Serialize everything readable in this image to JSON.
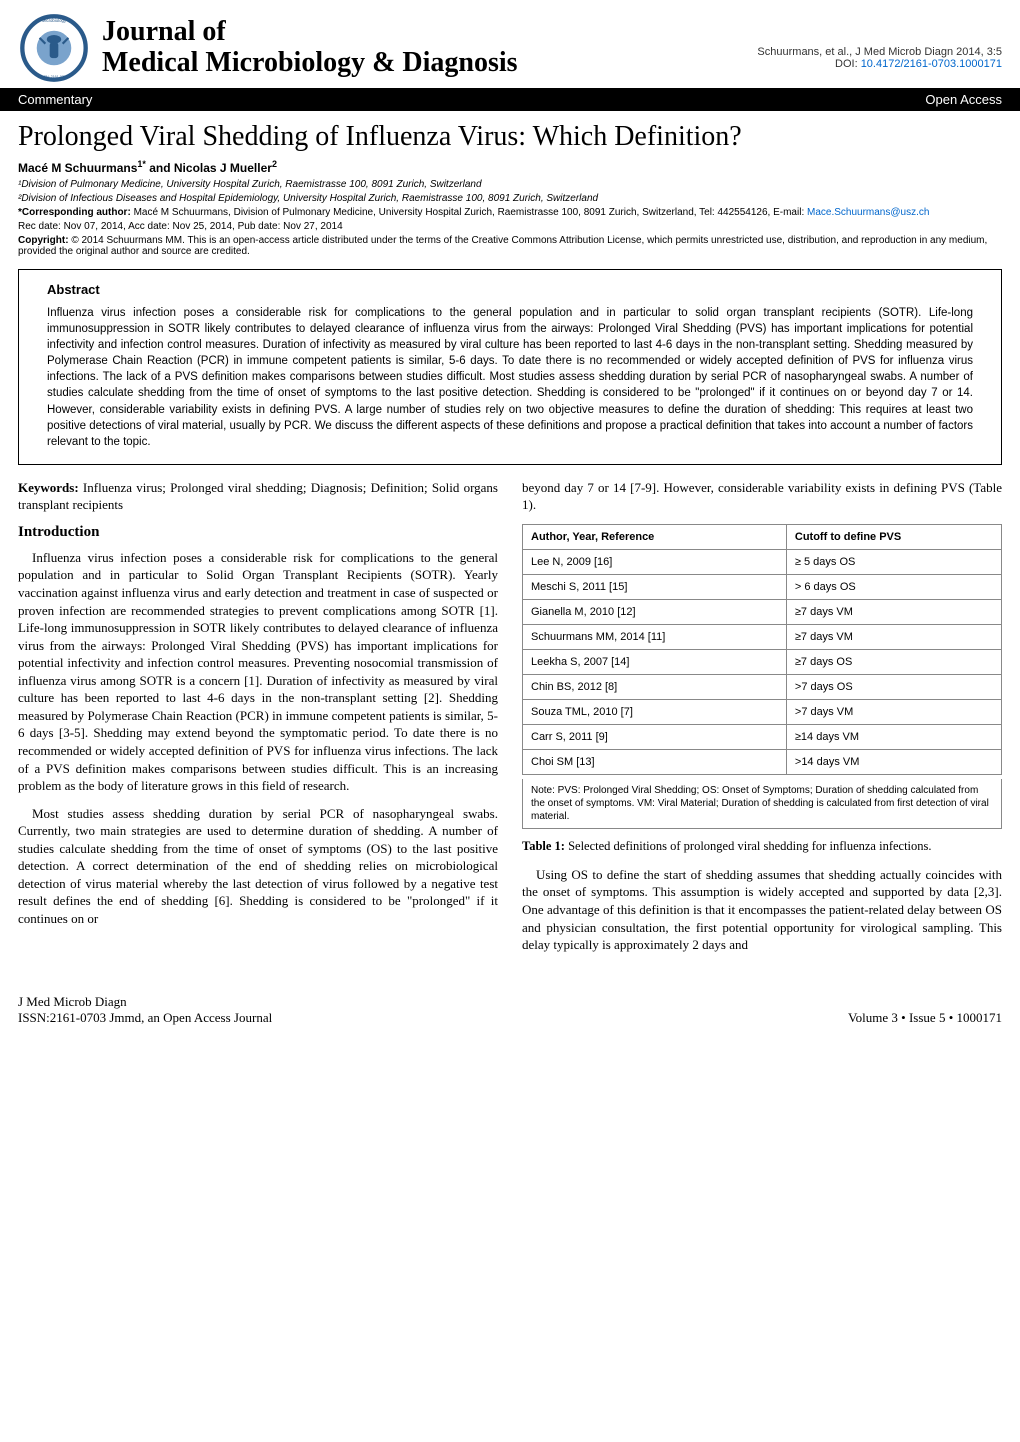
{
  "header": {
    "journal_line1": "Journal of",
    "journal_line2": "Medical Microbiology & Diagnosis",
    "citation": "Schuurmans, et al., J Med Microb Diagn 2014, 3:5",
    "doi_label": "DOI: ",
    "doi": "10.4172/2161-0703.1000171",
    "bar_left": "Commentary",
    "bar_right": "Open Access"
  },
  "title": "Prolonged Viral Shedding of Influenza Virus: Which Definition?",
  "authors_html": "Macé M Schuurmans",
  "authors_sup1": "1*",
  "authors_and": " and Nicolas J Mueller",
  "authors_sup2": "2",
  "affil1": "¹Division of Pulmonary Medicine, University Hospital Zurich, Raemistrasse 100, 8091 Zurich, Switzerland",
  "affil2": "²Division of Infectious Diseases and Hospital Epidemiology, University Hospital Zurich, Raemistrasse 100, 8091 Zurich, Switzerland",
  "corr_label": "*Corresponding author: ",
  "corr_text": "Macé M Schuurmans, Division of Pulmonary Medicine, University Hospital Zurich, Raemistrasse 100, 8091 Zurich, Switzerland, Tel: 442554126, E-mail: ",
  "corr_email": "Mace.Schuurmans@usz.ch",
  "dates": "Rec date: Nov 07, 2014, Acc date: Nov 25, 2014, Pub date: Nov 27, 2014",
  "copyright_label": "Copyright: ",
  "copyright_text": "© 2014 Schuurmans MM. This is an open-access article distributed under the terms of the Creative Commons Attribution License, which permits unrestricted use, distribution, and reproduction in any medium, provided the original author and source are credited.",
  "abstract_head": "Abstract",
  "abstract_text": "Influenza virus infection poses a considerable risk for complications to the general population and in particular to solid organ transplant recipients (SOTR). Life-long immunosuppression in SOTR likely contributes to delayed clearance of influenza virus from the airways: Prolonged Viral Shedding (PVS) has important implications for potential infectivity and infection control measures. Duration of infectivity as measured by viral culture has been reported to last 4-6 days in the non-transplant setting. Shedding measured by Polymerase Chain Reaction (PCR) in immune competent patients is similar, 5-6 days. To date there is no recommended or widely accepted definition of PVS for influenza virus infections. The lack of a PVS definition makes comparisons between studies difficult. Most studies assess shedding duration by serial PCR of nasopharyngeal swabs. A number of studies calculate shedding from the time of onset of symptoms to the last positive detection. Shedding is considered to be \"prolonged\" if it continues on or beyond day 7 or 14. However, considerable variability exists in defining PVS. A large number of studies rely on two objective measures to define the duration of shedding: This requires at least two positive detections of viral material, usually by PCR. We discuss the different aspects of these definitions and propose a practical definition that takes into account a number of factors relevant to the topic.",
  "keywords_label": "Keywords: ",
  "keywords": "Influenza virus; Prolonged viral shedding; Diagnosis; Definition; Solid organs transplant recipients",
  "intro_head": "Introduction",
  "para1": "Influenza virus infection poses a considerable risk for complications to the general population and in particular to Solid Organ Transplant Recipients (SOTR). Yearly vaccination against influenza virus and early detection and treatment in case of suspected or proven infection are recommended strategies to prevent complications among SOTR [1]. Life-long immunosuppression in SOTR likely contributes to delayed clearance of influenza virus from the airways: Prolonged Viral Shedding (PVS) has important implications for potential infectivity and infection control measures. Preventing nosocomial transmission of influenza virus among SOTR is a concern [1]. Duration of infectivity as measured by viral culture has been reported to last 4-6 days in the non-transplant setting [2]. Shedding measured by Polymerase Chain Reaction (PCR) in immune competent patients is similar, 5-6 days [3-5]. Shedding may extend beyond the symptomatic period. To date there is no recommended or widely accepted definition of PVS for influenza virus infections. The lack of a PVS definition makes comparisons between studies difficult. This is an increasing problem as the body of literature grows in this field of research.",
  "para2": "Most studies assess shedding duration by serial PCR of nasopharyngeal swabs. Currently, two main strategies are used to determine duration of shedding. A number of studies calculate shedding from the time of onset of symptoms (OS) to the last positive detection. A correct determination of the end of shedding relies on microbiological detection of virus material whereby the last detection of virus followed by a negative test result defines the end of shedding [6]. Shedding is considered to be \"prolonged\" if it continues on or",
  "para_top_right": "beyond day 7 or 14 [7-9]. However, considerable variability exists in defining PVS (Table 1).",
  "table": {
    "col1": "Author, Year, Reference",
    "col2": "Cutoff to define PVS",
    "rows": [
      [
        "Lee N, 2009 [16]",
        "≥ 5 days OS"
      ],
      [
        "Meschi S, 2011 [15]",
        "> 6 days OS"
      ],
      [
        "Gianella M, 2010 [12]",
        "≥7 days VM"
      ],
      [
        "Schuurmans MM, 2014 [11]",
        "≥7 days VM"
      ],
      [
        "Leekha S, 2007 [14]",
        "≥7 days OS"
      ],
      [
        "Chin BS, 2012 [8]",
        ">7 days OS"
      ],
      [
        "Souza TML, 2010 [7]",
        ">7 days VM"
      ],
      [
        "Carr S, 2011 [9]",
        "≥14 days VM"
      ],
      [
        "Choi SM [13]",
        ">14 days VM"
      ]
    ],
    "note": "Note: PVS: Prolonged Viral Shedding; OS: Onset of Symptoms; Duration of shedding calculated from the onset of symptoms. VM: Viral Material; Duration of shedding is calculated from first detection of viral material."
  },
  "table_caption_label": "Table 1: ",
  "table_caption": "Selected definitions of prolonged viral shedding for influenza infections.",
  "para3": "Using OS to define the start of shedding assumes that shedding actually coincides with the onset of symptoms. This assumption is widely accepted and supported by data [2,3]. One advantage of this definition is that it encompasses the patient-related delay between OS and physician consultation, the first potential opportunity for virological sampling. This delay typically is approximately 2 days and",
  "footer": {
    "left_line1": "J Med Microb Diagn",
    "left_line2": "ISSN:2161-0703 Jmmd, an Open Access Journal",
    "right": "Volume 3 • Issue 5 • 1000171"
  }
}
